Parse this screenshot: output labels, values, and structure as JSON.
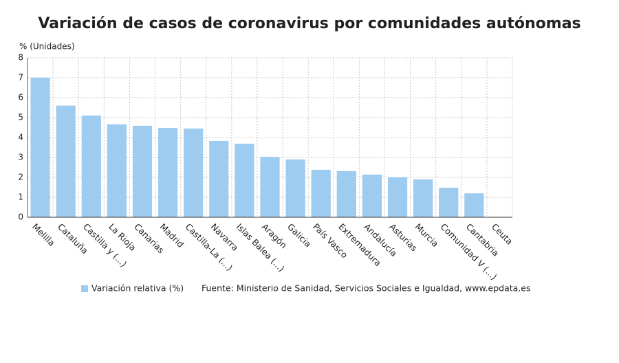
{
  "chart_data": {
    "type": "bar",
    "title": "Variación de casos de coronavirus por comunidades autónomas",
    "y_label": "% (Unidades)",
    "categories": [
      "Melilla",
      "Cataluña",
      "Castilla y (...)",
      "La Rioja",
      "Canarias",
      "Madrid",
      "Castilla-La (...)",
      "Navarra",
      "Islas Balea (...)",
      "Aragón",
      "Galicia",
      "País Vasco",
      "Extremadura",
      "Andalucía",
      "Asturias",
      "Murcia",
      "Comunidad V (...)",
      "Cantabria",
      "Ceuta"
    ],
    "series": [
      {
        "name": "Variación relativa (%)",
        "color": "#9ecbf0",
        "values": [
          7.0,
          5.6,
          5.1,
          4.66,
          4.59,
          4.48,
          4.45,
          3.83,
          3.69,
          3.03,
          2.9,
          2.38,
          2.31,
          2.14,
          2.0,
          1.9,
          1.48,
          1.2,
          0
        ]
      }
    ],
    "ylim": [
      0,
      8
    ],
    "yticks": [
      0,
      1,
      2,
      3,
      4,
      5,
      6,
      7,
      8
    ],
    "grid": true,
    "source": "Fuente: Ministerio de Sanidad, Servicios Sociales e Igualdad, www.epdata.es"
  }
}
